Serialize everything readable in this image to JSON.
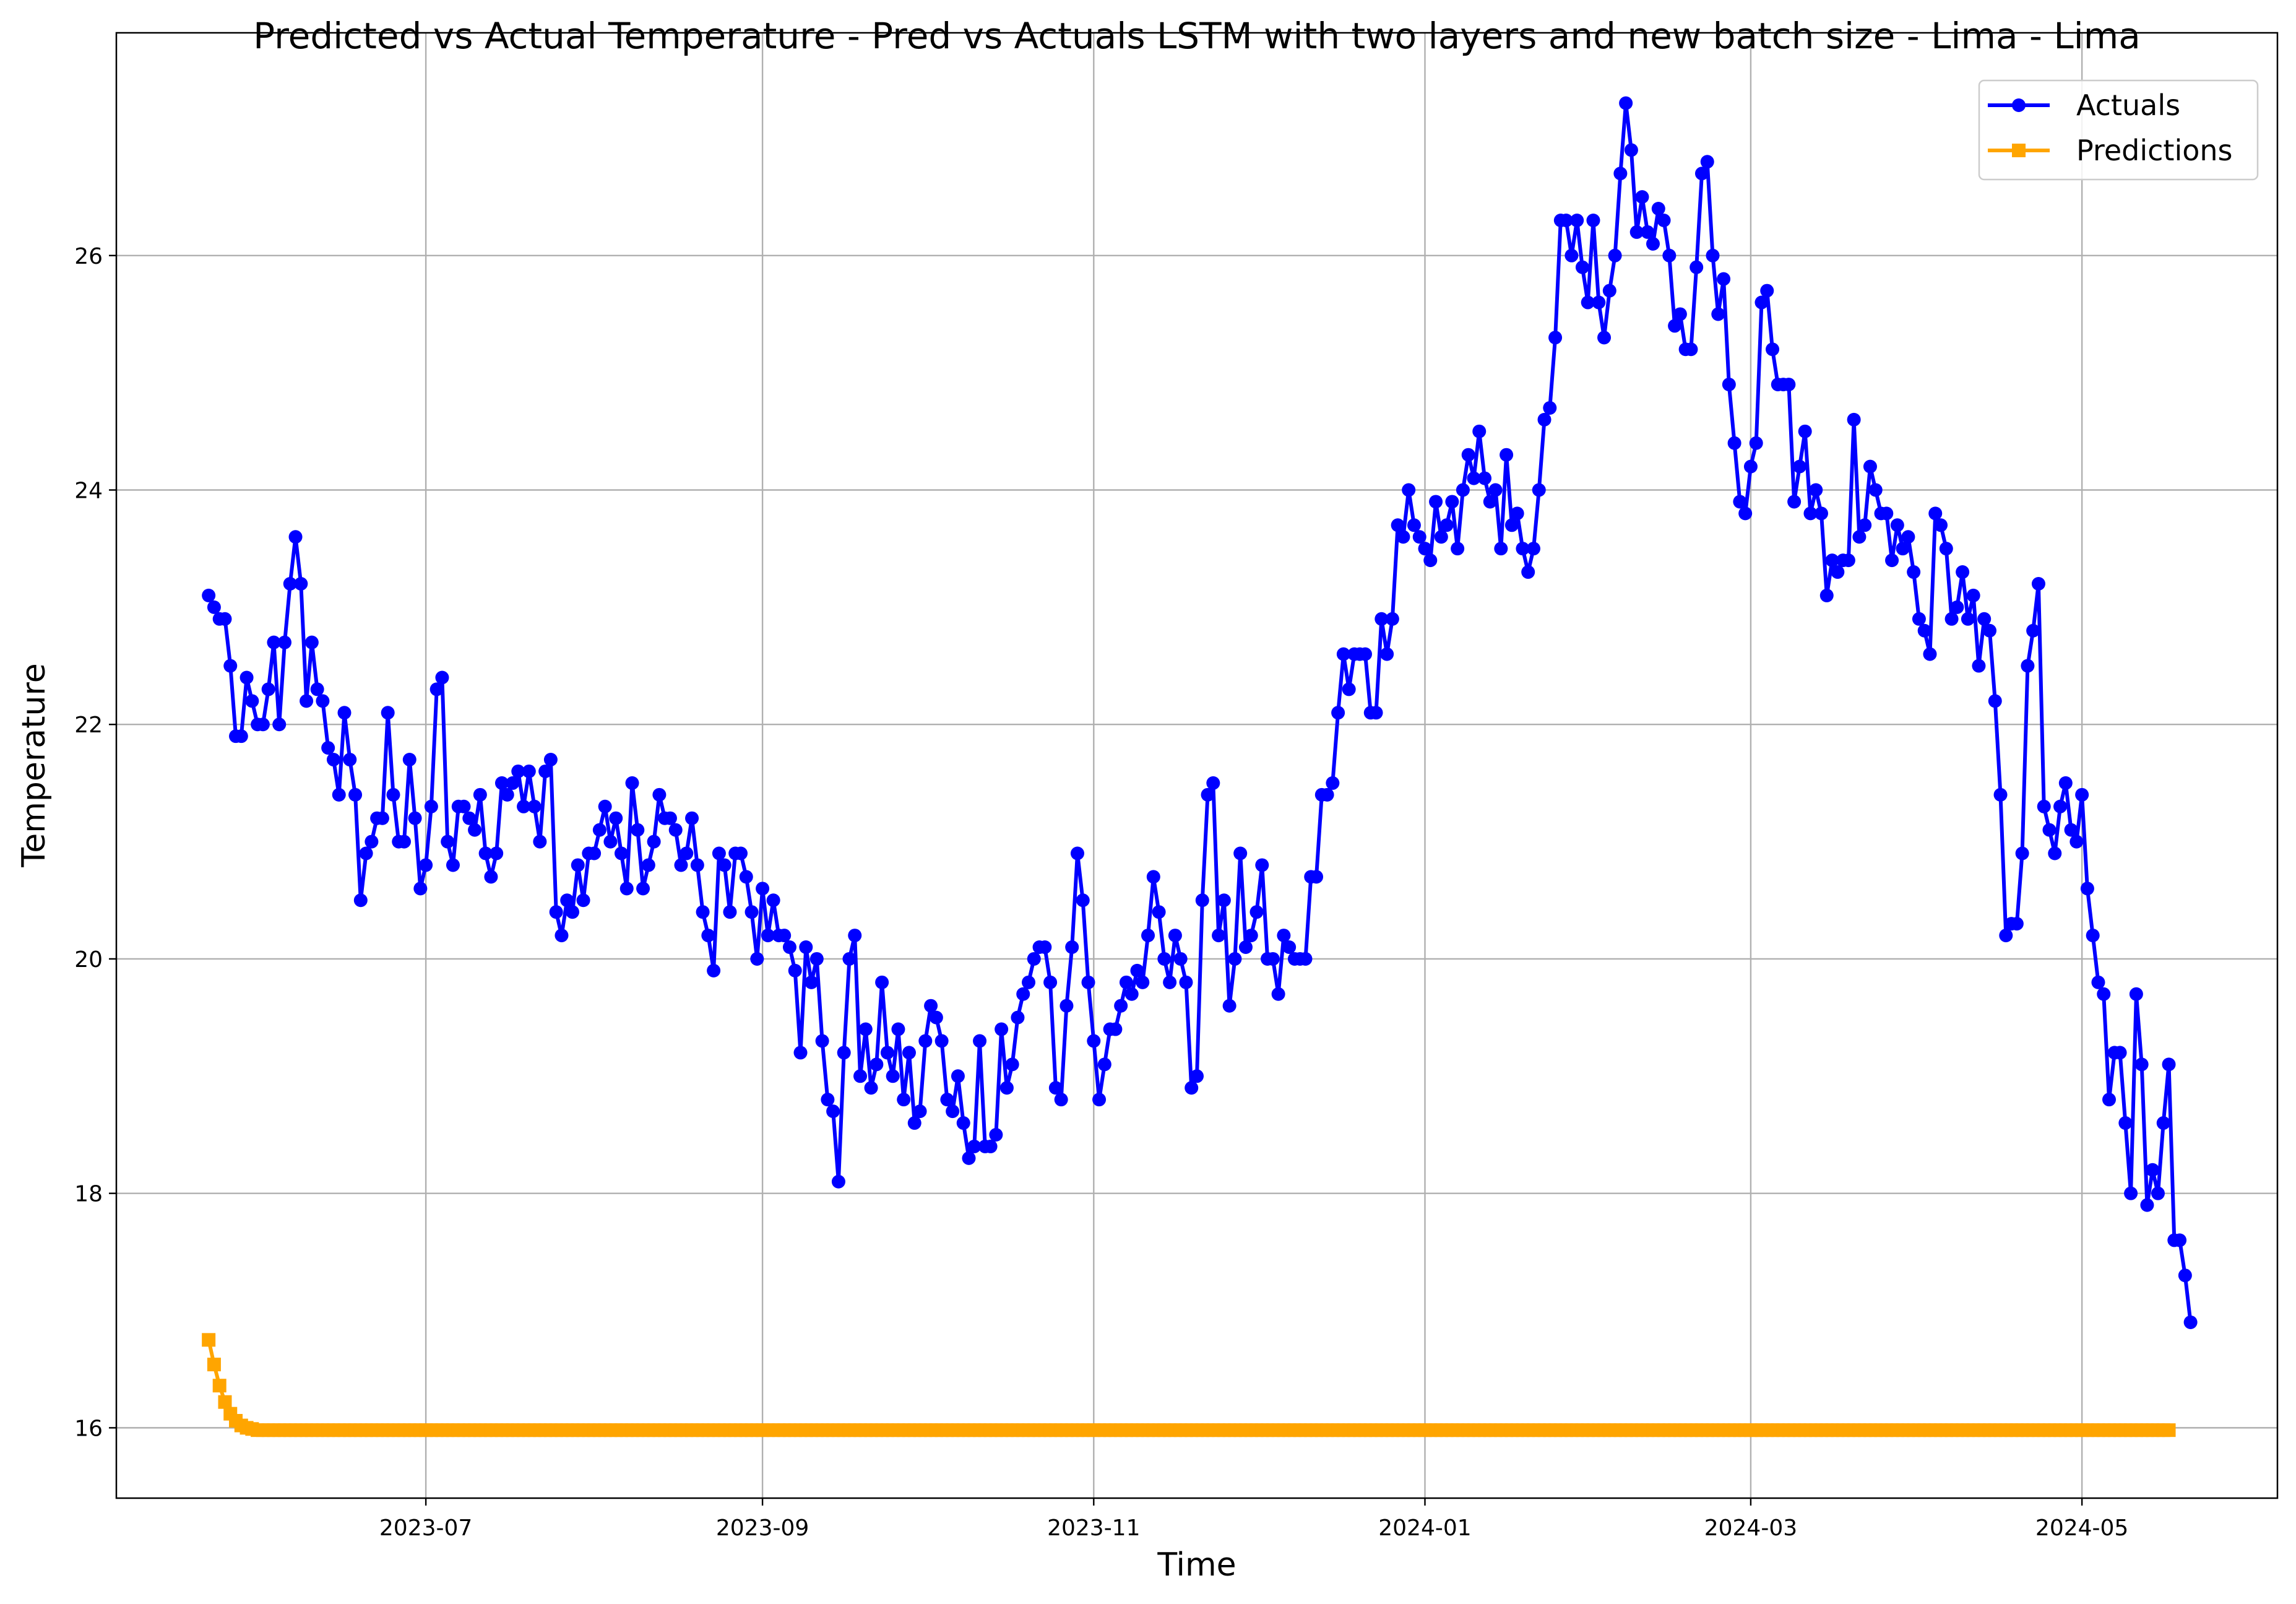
{
  "chart_data": {
    "type": "line",
    "title": "Predicted vs Actual Temperature - Pred vs Actuals LSTM with two layers and new batch size - Lima - Lima",
    "xlabel": "Time",
    "ylabel": "Temperature",
    "x_start": "2023-05-22",
    "x_end": "2024-05-20",
    "xlim": [
      "2023-05-05",
      "2024-06-06"
    ],
    "ylim": [
      15.4,
      27.9
    ],
    "grid": true,
    "legend_position": "top-right",
    "x_ticks": [
      "2023-07",
      "2023-09",
      "2023-11",
      "2024-01",
      "2024-03",
      "2024-05"
    ],
    "y_ticks": [
      16,
      18,
      20,
      22,
      24,
      26
    ],
    "series": [
      {
        "name": "Actuals",
        "color": "#0000ff",
        "marker": "circle",
        "values": [
          23.1,
          23.0,
          22.9,
          22.9,
          22.5,
          21.9,
          21.9,
          22.4,
          22.2,
          22.0,
          22.0,
          22.3,
          22.7,
          22.0,
          22.7,
          23.2,
          23.6,
          23.2,
          22.2,
          22.7,
          22.3,
          22.2,
          21.8,
          21.7,
          21.4,
          22.1,
          21.7,
          21.4,
          20.5,
          20.9,
          21.0,
          21.2,
          21.2,
          22.1,
          21.4,
          21.0,
          21.0,
          21.7,
          21.2,
          20.6,
          20.8,
          21.3,
          22.3,
          22.4,
          21.0,
          20.8,
          21.3,
          21.3,
          21.2,
          21.1,
          21.4,
          20.9,
          20.7,
          20.9,
          21.5,
          21.4,
          21.5,
          21.6,
          21.3,
          21.6,
          21.3,
          21.0,
          21.6,
          21.7,
          20.4,
          20.2,
          20.5,
          20.4,
          20.8,
          20.5,
          20.9,
          20.9,
          21.1,
          21.3,
          21.0,
          21.2,
          20.9,
          20.6,
          21.5,
          21.1,
          20.6,
          20.8,
          21.0,
          21.4,
          21.2,
          21.2,
          21.1,
          20.8,
          20.9,
          21.2,
          20.8,
          20.4,
          20.2,
          19.9,
          20.9,
          20.8,
          20.4,
          20.9,
          20.9,
          20.7,
          20.4,
          20.0,
          20.6,
          20.2,
          20.5,
          20.2,
          20.2,
          20.1,
          19.9,
          19.2,
          20.1,
          19.8,
          20.0,
          19.3,
          18.8,
          18.7,
          18.1,
          19.2,
          20.0,
          20.2,
          19.0,
          19.4,
          18.9,
          19.1,
          19.8,
          19.2,
          19.0,
          19.4,
          18.8,
          19.2,
          18.6,
          18.7,
          19.3,
          19.6,
          19.5,
          19.3,
          18.8,
          18.7,
          19.0,
          18.6,
          18.3,
          18.4,
          19.3,
          18.4,
          18.4,
          18.5,
          19.4,
          18.9,
          19.1,
          19.5,
          19.7,
          19.8,
          20.0,
          20.1,
          20.1,
          19.8,
          18.9,
          18.8,
          19.6,
          20.1,
          20.9,
          20.5,
          19.8,
          19.3,
          18.8,
          19.1,
          19.4,
          19.4,
          19.6,
          19.8,
          19.7,
          19.9,
          19.8,
          20.2,
          20.7,
          20.4,
          20.0,
          19.8,
          20.2,
          20.0,
          19.8,
          18.9,
          19.0,
          20.5,
          21.4,
          21.5,
          20.2,
          20.5,
          19.6,
          20.0,
          20.9,
          20.1,
          20.2,
          20.4,
          20.8,
          20.0,
          20.0,
          19.7,
          20.2,
          20.1,
          20.0,
          20.0,
          20.0,
          20.7,
          20.7,
          21.4,
          21.4,
          21.5,
          22.1,
          22.6,
          22.3,
          22.6,
          22.6,
          22.6,
          22.1,
          22.1,
          22.9,
          22.6,
          22.9,
          23.7,
          23.6,
          24.0,
          23.7,
          23.6,
          23.5,
          23.4,
          23.9,
          23.6,
          23.7,
          23.9,
          23.5,
          24.0,
          24.3,
          24.1,
          24.5,
          24.1,
          23.9,
          24.0,
          23.5,
          24.3,
          23.7,
          23.8,
          23.5,
          23.3,
          23.5,
          24.0,
          24.6,
          24.7,
          25.3,
          26.3,
          26.3,
          26.0,
          26.3,
          25.9,
          25.6,
          26.3,
          25.6,
          25.3,
          25.7,
          26.0,
          26.7,
          27.3,
          26.9,
          26.2,
          26.5,
          26.2,
          26.1,
          26.4,
          26.3,
          26.0,
          25.4,
          25.5,
          25.2,
          25.2,
          25.9,
          26.7,
          26.8,
          26.0,
          25.5,
          25.8,
          24.9,
          24.4,
          23.9,
          23.8,
          24.2,
          24.4,
          25.6,
          25.7,
          25.2,
          24.9,
          24.9,
          24.9,
          23.9,
          24.2,
          24.5,
          23.8,
          24.0,
          23.8,
          23.1,
          23.4,
          23.3,
          23.4,
          23.4,
          24.6,
          23.6,
          23.7,
          24.2,
          24.0,
          23.8,
          23.8,
          23.4,
          23.7,
          23.5,
          23.6,
          23.3,
          22.9,
          22.8,
          22.6,
          23.8,
          23.7,
          23.5,
          22.9,
          23.0,
          23.3,
          22.9,
          23.1,
          22.5,
          22.9,
          22.8,
          22.2,
          21.4,
          20.2,
          20.3,
          20.3,
          20.9,
          22.5,
          22.8,
          23.2,
          21.3,
          21.1,
          20.9,
          21.3,
          21.5,
          21.1,
          21.0,
          21.4,
          20.6,
          20.2,
          19.8,
          19.7,
          18.8,
          19.2,
          19.2,
          18.6,
          18.0,
          19.7,
          19.1,
          17.9,
          18.2,
          18.0,
          18.6,
          19.1,
          17.6,
          17.6,
          17.3,
          16.9
        ]
      },
      {
        "name": "Predictions",
        "color": "#ffa500",
        "marker": "square",
        "values": [
          16.75,
          16.54,
          16.36,
          16.22,
          16.12,
          16.06,
          16.02,
          16.0,
          15.99,
          15.98,
          15.98,
          15.98,
          15.98,
          15.98,
          15.98,
          15.98,
          15.98,
          15.98,
          15.98,
          15.98,
          15.98,
          15.98,
          15.98,
          15.98,
          15.98,
          15.98,
          15.98,
          15.98,
          15.98,
          15.98,
          15.98,
          15.98,
          15.98,
          15.98,
          15.98,
          15.98,
          15.98,
          15.98,
          15.98,
          15.98,
          15.98,
          15.98,
          15.98,
          15.98,
          15.98,
          15.98,
          15.98,
          15.98,
          15.98,
          15.98,
          15.98,
          15.98,
          15.98,
          15.98,
          15.98,
          15.98,
          15.98,
          15.98,
          15.98,
          15.98,
          15.98,
          15.98,
          15.98,
          15.98,
          15.98,
          15.98,
          15.98,
          15.98,
          15.98,
          15.98,
          15.98,
          15.98,
          15.98,
          15.98,
          15.98,
          15.98,
          15.98,
          15.98,
          15.98,
          15.98,
          15.98,
          15.98,
          15.98,
          15.98,
          15.98,
          15.98,
          15.98,
          15.98,
          15.98,
          15.98,
          15.98,
          15.98,
          15.98,
          15.98,
          15.98,
          15.98,
          15.98,
          15.98,
          15.98,
          15.98,
          15.98,
          15.98,
          15.98,
          15.98,
          15.98,
          15.98,
          15.98,
          15.98,
          15.98,
          15.98,
          15.98,
          15.98,
          15.98,
          15.98,
          15.98,
          15.98,
          15.98,
          15.98,
          15.98,
          15.98,
          15.98,
          15.98,
          15.98,
          15.98,
          15.98,
          15.98,
          15.98,
          15.98,
          15.98,
          15.98,
          15.98,
          15.98,
          15.98,
          15.98,
          15.98,
          15.98,
          15.98,
          15.98,
          15.98,
          15.98,
          15.98,
          15.98,
          15.98,
          15.98,
          15.98,
          15.98,
          15.98,
          15.98,
          15.98,
          15.98,
          15.98,
          15.98,
          15.98,
          15.98,
          15.98,
          15.98,
          15.98,
          15.98,
          15.98,
          15.98,
          15.98,
          15.98,
          15.98,
          15.98,
          15.98,
          15.98,
          15.98,
          15.98,
          15.98,
          15.98,
          15.98,
          15.98,
          15.98,
          15.98,
          15.98,
          15.98,
          15.98,
          15.98,
          15.98,
          15.98,
          15.98,
          15.98,
          15.98,
          15.98,
          15.98,
          15.98,
          15.98,
          15.98,
          15.98,
          15.98,
          15.98,
          15.98,
          15.98,
          15.98,
          15.98,
          15.98,
          15.98,
          15.98,
          15.98,
          15.98,
          15.98,
          15.98,
          15.98,
          15.98,
          15.98,
          15.98,
          15.98,
          15.98,
          15.98,
          15.98,
          15.98,
          15.98,
          15.98,
          15.98,
          15.98,
          15.98,
          15.98,
          15.98,
          15.98,
          15.98,
          15.98,
          15.98,
          15.98,
          15.98,
          15.98,
          15.98,
          15.98,
          15.98,
          15.98,
          15.98,
          15.98,
          15.98,
          15.98,
          15.98,
          15.98,
          15.98,
          15.98,
          15.98,
          15.98,
          15.98,
          15.98,
          15.98,
          15.98,
          15.98,
          15.98,
          15.98,
          15.98,
          15.98,
          15.98,
          15.98,
          15.98,
          15.98,
          15.98,
          15.98,
          15.98,
          15.98,
          15.98,
          15.98,
          15.98,
          15.98,
          15.98,
          15.98,
          15.98,
          15.98,
          15.98,
          15.98,
          15.98,
          15.98,
          15.98,
          15.98,
          15.98,
          15.98,
          15.98,
          15.98,
          15.98,
          15.98,
          15.98,
          15.98,
          15.98,
          15.98,
          15.98,
          15.98,
          15.98,
          15.98,
          15.98,
          15.98,
          15.98,
          15.98,
          15.98,
          15.98,
          15.98,
          15.98,
          15.98,
          15.98,
          15.98,
          15.98,
          15.98,
          15.98,
          15.98,
          15.98,
          15.98,
          15.98,
          15.98,
          15.98,
          15.98,
          15.98,
          15.98,
          15.98,
          15.98,
          15.98,
          15.98,
          15.98,
          15.98,
          15.98,
          15.98,
          15.98,
          15.98,
          15.98,
          15.98,
          15.98,
          15.98,
          15.98,
          15.98,
          15.98,
          15.98,
          15.98,
          15.98,
          15.98,
          15.98,
          15.98,
          15.98,
          15.98,
          15.98,
          15.98,
          15.98,
          15.98,
          15.98,
          15.98,
          15.98,
          15.98,
          15.98,
          15.98,
          15.98,
          15.98,
          15.98,
          15.98,
          15.98,
          15.98,
          15.98,
          15.98,
          15.98,
          15.98,
          15.98,
          15.98,
          15.98,
          15.98,
          15.98,
          15.98,
          15.98,
          15.98,
          15.98,
          15.98
        ]
      }
    ]
  }
}
